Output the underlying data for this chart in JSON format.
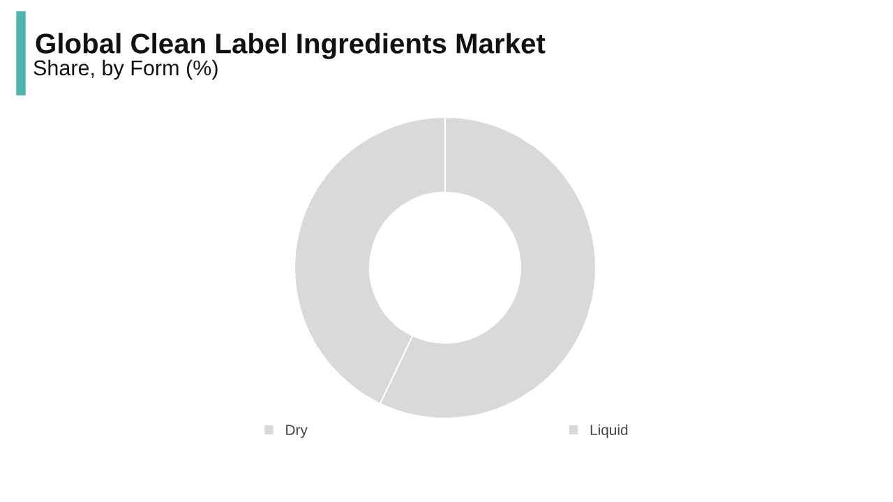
{
  "chart_data": {
    "type": "donut",
    "title": "Global Clean Label Ingredients Market",
    "subtitle": "Share, by Form (%)",
    "categories": [
      "Dry",
      "Liquid"
    ],
    "values": [
      57.1,
      42.9
    ],
    "colors": [
      "#d9d9d9",
      "#d9d9d9"
    ],
    "legend": "bottom"
  }
}
